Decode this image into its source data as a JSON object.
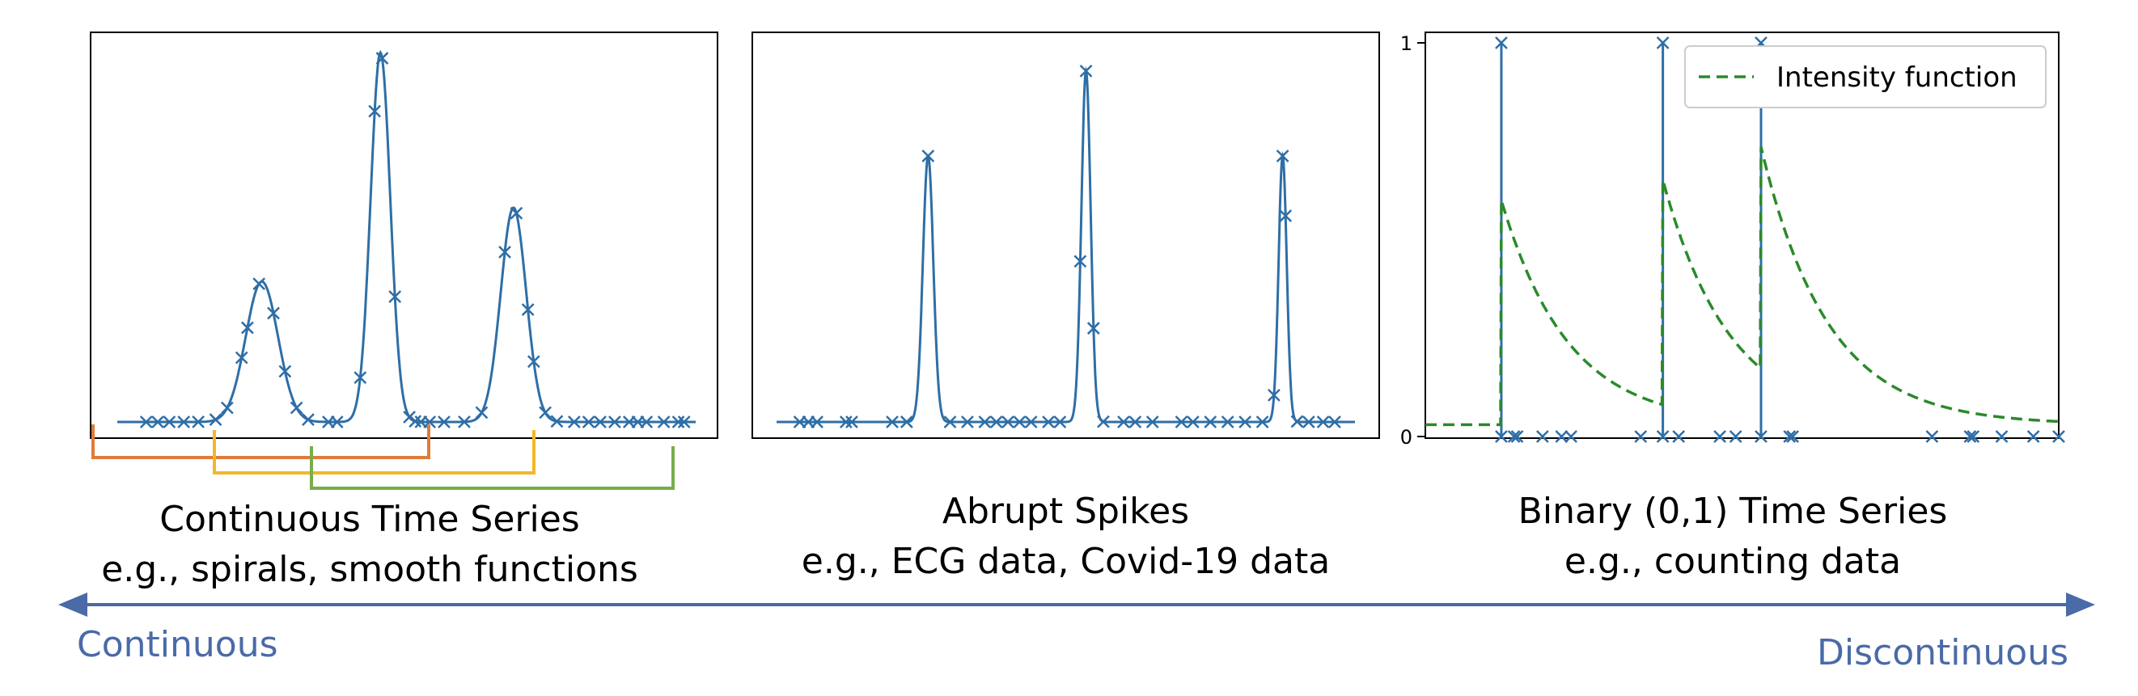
{
  "panels": {
    "continuous": {
      "title": "Continuous Time Series",
      "subtitle": "e.g., spirals, smooth functions"
    },
    "spikes": {
      "title": "Abrupt Spikes",
      "subtitle": "e.g., ECG data, Covid-19 data"
    },
    "binary": {
      "title": "Binary (0,1) Time Series",
      "subtitle": "e.g., counting data",
      "legend_label": "Intensity function",
      "y_ticks": [
        "0",
        "1"
      ]
    }
  },
  "axis": {
    "left_label": "Continuous",
    "right_label": "Discontinuous"
  },
  "colors": {
    "series": "#2e6ea6",
    "intensity": "#2a8a2a",
    "arrow": "#4a6aa8",
    "window_1": "#e07b39",
    "window_2": "#f2b829",
    "window_3": "#77ad4b"
  },
  "chart_data": [
    {
      "type": "line",
      "peaks": [
        {
          "center": 0.25,
          "height": 0.38
        },
        {
          "center": 0.455,
          "height": 1.0
        },
        {
          "center": 0.685,
          "height": 0.58
        }
      ],
      "sample_x": [
        0.05,
        0.07,
        0.09,
        0.115,
        0.14,
        0.17,
        0.19,
        0.215,
        0.225,
        0.245,
        0.27,
        0.29,
        0.31,
        0.33,
        0.365,
        0.38,
        0.42,
        0.445,
        0.458,
        0.48,
        0.505,
        0.515,
        0.525,
        0.54,
        0.565,
        0.6,
        0.63,
        0.67,
        0.69,
        0.71,
        0.72,
        0.74,
        0.76,
        0.79,
        0.815,
        0.835,
        0.86,
        0.885,
        0.9,
        0.915,
        0.945,
        0.97,
        0.98
      ]
    },
    {
      "type": "line",
      "peaks": [
        {
          "center": 0.262,
          "height": 0.72
        },
        {
          "center": 0.535,
          "height": 0.95
        },
        {
          "center": 0.875,
          "height": 0.72
        }
      ],
      "sample_x": [
        0.04,
        0.055,
        0.07,
        0.12,
        0.13,
        0.2,
        0.225,
        0.262,
        0.3,
        0.33,
        0.36,
        0.38,
        0.4,
        0.42,
        0.44,
        0.47,
        0.49,
        0.525,
        0.535,
        0.548,
        0.565,
        0.6,
        0.62,
        0.65,
        0.7,
        0.72,
        0.75,
        0.78,
        0.81,
        0.84,
        0.86,
        0.875,
        0.88,
        0.9,
        0.92,
        0.945,
        0.965
      ]
    },
    {
      "type": "line",
      "ylim": [
        0,
        1
      ],
      "events": [
        0.12,
        0.375,
        0.53
      ],
      "baseline": 0.03,
      "jumps": [
        0.6,
        0.65,
        0.73
      ],
      "zeros_x": [
        0.12,
        0.14,
        0.145,
        0.185,
        0.215,
        0.23,
        0.34,
        0.375,
        0.4,
        0.465,
        0.49,
        0.53,
        0.575,
        0.58,
        0.8,
        0.86,
        0.865,
        0.91,
        0.96,
        1.0
      ]
    }
  ]
}
